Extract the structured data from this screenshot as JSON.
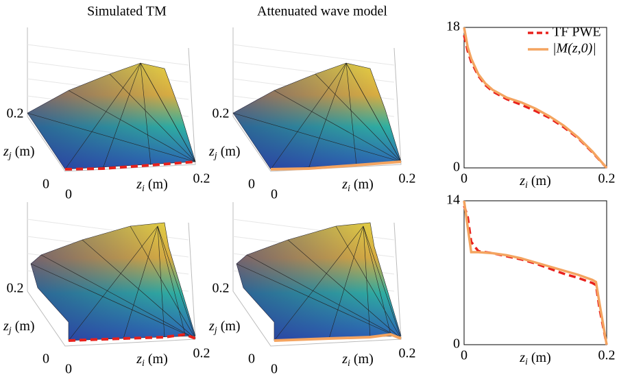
{
  "titles": [
    "Simulated TM",
    "Attenuated wave model"
  ],
  "surface_axes": {
    "zj": {
      "symbol": "z",
      "subscript": "j",
      "unit": "(m)"
    },
    "zi": {
      "symbol": "z",
      "subscript": "i",
      "unit": "(m)"
    },
    "ticks": [
      0,
      0.2
    ]
  },
  "chart_data": [
    {
      "type": "line",
      "xlim": [
        0,
        0.2
      ],
      "ylim": [
        0,
        18
      ],
      "xticks": [
        0,
        0.2
      ],
      "yticks": [
        0,
        18
      ],
      "xlabel": {
        "symbol": "z",
        "subscript": "i",
        "unit": "(m)"
      },
      "x": [
        0,
        0.005,
        0.01,
        0.02,
        0.03,
        0.04,
        0.06,
        0.08,
        0.1,
        0.12,
        0.14,
        0.16,
        0.18,
        0.2
      ],
      "legend": "upper right",
      "series": [
        {
          "name": "TF PWE",
          "color": "#e8211c",
          "dash": true,
          "values": [
            17,
            15,
            13.6,
            11.8,
            10.6,
            9.8,
            8.8,
            8.1,
            7.3,
            6.4,
            5.2,
            3.8,
            2.0,
            0
          ]
        },
        {
          "name": "|M(z,0)|",
          "color": "#f4a460",
          "dash": false,
          "values": [
            18,
            15.5,
            14,
            12,
            10.8,
            10,
            9,
            8.4,
            7.6,
            6.6,
            5.4,
            3.9,
            2.1,
            0
          ]
        }
      ]
    },
    {
      "type": "line",
      "xlim": [
        0,
        0.2
      ],
      "ylim": [
        0,
        14
      ],
      "xticks": [
        0,
        0.2
      ],
      "yticks": [
        0,
        14
      ],
      "xlabel": {
        "symbol": "z",
        "subscript": "i",
        "unit": "(m)"
      },
      "x": [
        0,
        0.005,
        0.01,
        0.02,
        0.04,
        0.06,
        0.08,
        0.1,
        0.12,
        0.14,
        0.16,
        0.18,
        0.185,
        0.19,
        0.2
      ],
      "series": [
        {
          "color": "#e8211c",
          "dash": true,
          "values": [
            13.5,
            12.5,
            10,
            9.1,
            8.9,
            8.6,
            8.3,
            7.9,
            7.4,
            6.9,
            6.5,
            6.0,
            5.8,
            3.5,
            0
          ]
        },
        {
          "color": "#f4a460",
          "dash": false,
          "values": [
            14,
            11.5,
            9,
            9,
            8.9,
            8.7,
            8.4,
            8.0,
            7.6,
            7.2,
            6.8,
            6.3,
            6.1,
            4,
            0
          ]
        }
      ]
    }
  ]
}
